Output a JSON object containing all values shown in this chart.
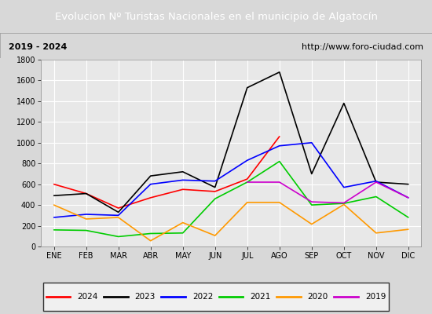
{
  "title": "Evolucion Nº Turistas Nacionales en el municipio de Algatocín",
  "subtitle_left": "2019 - 2024",
  "subtitle_right": "http://www.foro-ciudad.com",
  "months": [
    "ENE",
    "FEB",
    "MAR",
    "ABR",
    "MAY",
    "JUN",
    "JUL",
    "AGO",
    "SEP",
    "OCT",
    "NOV",
    "DIC"
  ],
  "series": {
    "2024": [
      600,
      510,
      370,
      470,
      550,
      530,
      650,
      1060,
      null,
      null,
      null,
      null
    ],
    "2023": [
      490,
      510,
      330,
      680,
      720,
      570,
      1530,
      1680,
      700,
      1380,
      620,
      600
    ],
    "2022": [
      280,
      310,
      300,
      600,
      640,
      630,
      830,
      970,
      1000,
      570,
      630,
      470
    ],
    "2021": [
      160,
      155,
      95,
      125,
      130,
      460,
      620,
      820,
      400,
      415,
      480,
      280
    ],
    "2020": [
      400,
      265,
      280,
      55,
      230,
      105,
      425,
      425,
      215,
      405,
      130,
      165
    ],
    "2019": [
      null,
      null,
      null,
      null,
      null,
      null,
      620,
      620,
      430,
      420,
      620,
      470
    ]
  },
  "colors": {
    "2024": "#ff0000",
    "2023": "#000000",
    "2022": "#0000ff",
    "2021": "#00cc00",
    "2020": "#ff9900",
    "2019": "#cc00cc"
  },
  "ylim": [
    0,
    1800
  ],
  "yticks": [
    0,
    200,
    400,
    600,
    800,
    1000,
    1200,
    1400,
    1600,
    1800
  ],
  "title_bg_color": "#4080c0",
  "title_font_color": "#ffffff",
  "outer_bg_color": "#d8d8d8",
  "plot_bg_color": "#e8e8e8",
  "grid_color": "#ffffff",
  "linewidth": 1.2
}
